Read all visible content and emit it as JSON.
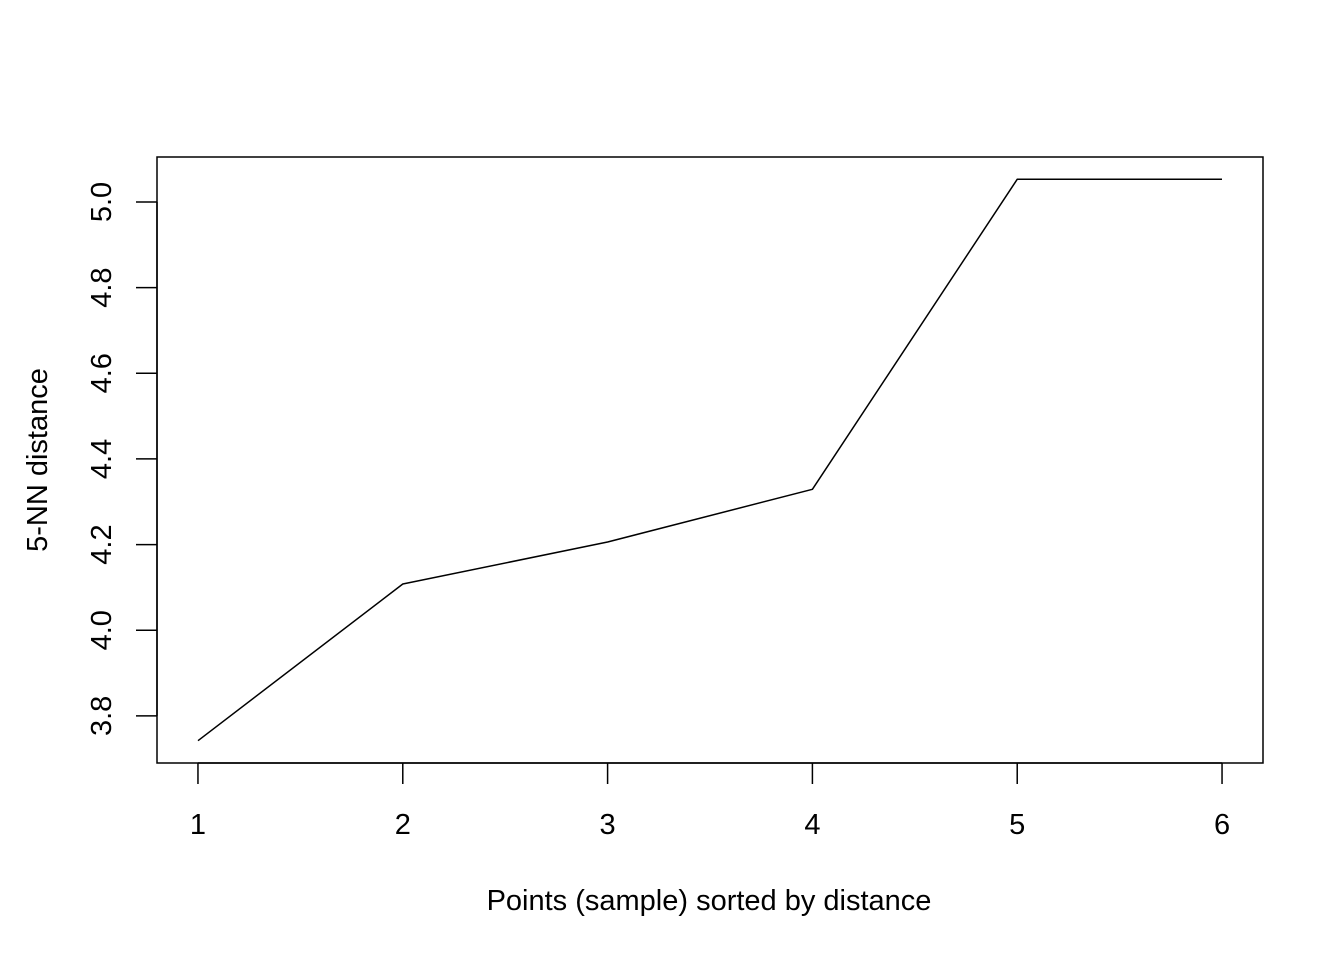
{
  "chart_data": {
    "type": "line",
    "title": "",
    "xlabel": "Points (sample) sorted by distance",
    "ylabel": "5-NN distance",
    "x": [
      1,
      2,
      3,
      4,
      5,
      6
    ],
    "series": [
      {
        "values": [
          3.742,
          4.108,
          4.206,
          4.329,
          5.053,
          5.053
        ]
      }
    ],
    "xlim": [
      0.8,
      6.2
    ],
    "ylim": [
      3.69,
      5.105
    ],
    "xticks": [
      "1",
      "2",
      "3",
      "4",
      "5",
      "6"
    ],
    "yticks": [
      "3.8",
      "4.0",
      "4.2",
      "4.4",
      "4.6",
      "4.8",
      "5.0"
    ],
    "grid": false,
    "legend": "none",
    "line_color": "#000000"
  }
}
